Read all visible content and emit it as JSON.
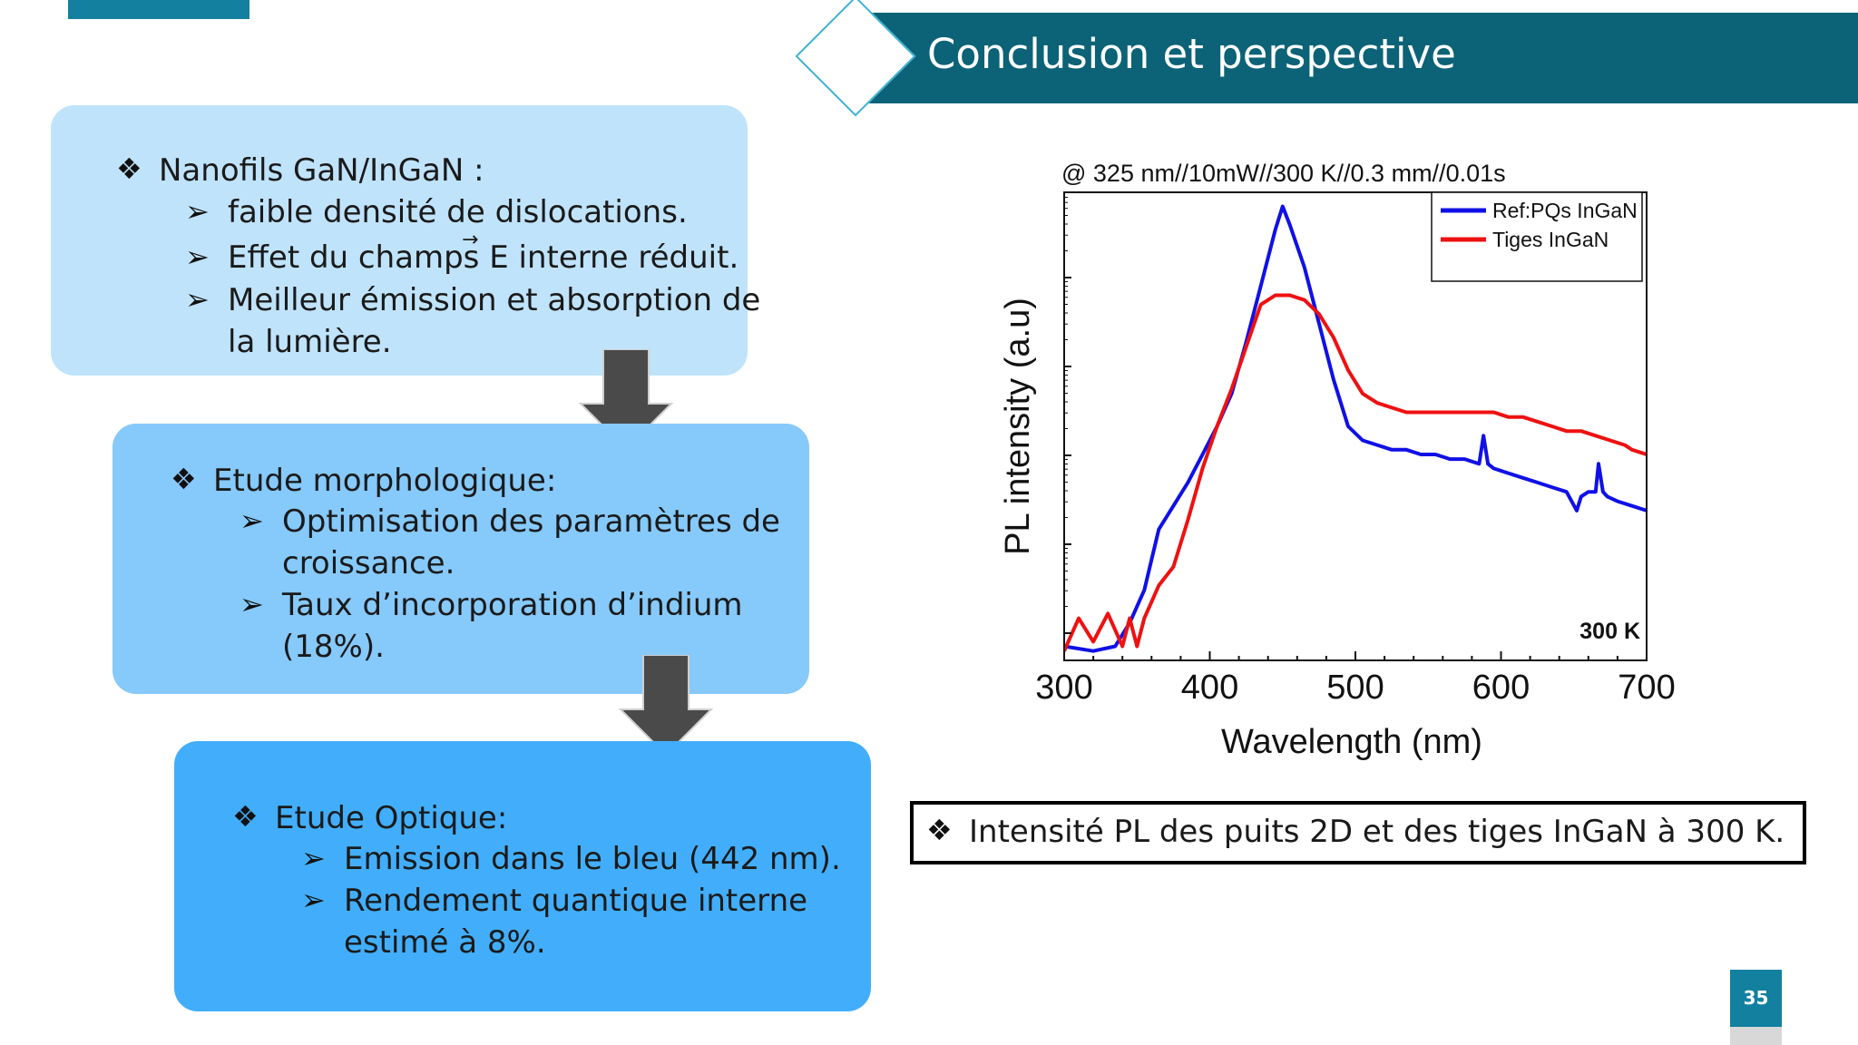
{
  "slide": {
    "title": "Conclusion et perspective",
    "page_number": "35",
    "colors": {
      "header": "#0c6277",
      "accent": "#13809f",
      "box1": "#bfe3fb",
      "box2": "#86c9fb",
      "box3": "#42aefb"
    }
  },
  "box1": {
    "heading": "Nanofils GaN/InGaN :",
    "items": [
      "faible densité de dislocations.",
      "Effet du champs E interne réduit.",
      "Meilleur émission et absorption de",
      "la lumière."
    ]
  },
  "box2": {
    "heading": "Etude morphologique:",
    "items": [
      "Optimisation des paramètres de",
      "croissance.",
      "Taux d’incorporation d’indium",
      "(18%)."
    ]
  },
  "box3": {
    "heading": "Etude Optique:",
    "items": [
      "Emission dans le bleu (442 nm).",
      "Rendement quantique interne",
      "estimé à 8%."
    ]
  },
  "caption": "Intensité PL des puits 2D et des tiges InGaN à 300 K.",
  "chart_data": {
    "type": "line",
    "title": "@ 325 nm//10mW//300 K//0.3 mm//0.01s",
    "xlabel": "Wavelength (nm)",
    "ylabel": "PL intensity (a.u)",
    "xlim": [
      300,
      700
    ],
    "xticks": [
      300,
      400,
      500,
      600,
      700
    ],
    "yscale": "log",
    "annotation": "300 K",
    "legend_position": "top-right",
    "grid": false,
    "series": [
      {
        "name": "Ref:PQs InGaN",
        "color": "#1010e6",
        "x": [
          300,
          320,
          335,
          345,
          355,
          365,
          375,
          385,
          395,
          405,
          415,
          425,
          435,
          445,
          450,
          455,
          465,
          475,
          485,
          495,
          505,
          515,
          525,
          535,
          545,
          555,
          565,
          575,
          585,
          588,
          591,
          595,
          605,
          615,
          625,
          635,
          645,
          652,
          655,
          660,
          665,
          667,
          670,
          673,
          680,
          690,
          700
        ],
        "y": [
          0.03,
          0.02,
          0.03,
          0.08,
          0.15,
          0.28,
          0.33,
          0.38,
          0.44,
          0.5,
          0.57,
          0.68,
          0.8,
          0.92,
          0.97,
          0.93,
          0.84,
          0.72,
          0.6,
          0.5,
          0.47,
          0.46,
          0.45,
          0.45,
          0.44,
          0.44,
          0.43,
          0.43,
          0.42,
          0.48,
          0.42,
          0.41,
          0.4,
          0.39,
          0.38,
          0.37,
          0.36,
          0.32,
          0.35,
          0.36,
          0.36,
          0.42,
          0.36,
          0.35,
          0.34,
          0.33,
          0.32
        ]
      },
      {
        "name": "Tiges InGaN",
        "color": "#ee1111",
        "x": [
          300,
          310,
          320,
          330,
          340,
          345,
          350,
          355,
          365,
          375,
          385,
          395,
          405,
          415,
          425,
          435,
          445,
          455,
          465,
          475,
          485,
          495,
          505,
          515,
          525,
          535,
          545,
          555,
          565,
          575,
          585,
          595,
          605,
          615,
          625,
          635,
          645,
          655,
          665,
          675,
          685,
          690,
          700
        ],
        "y": [
          0.02,
          0.09,
          0.04,
          0.1,
          0.03,
          0.09,
          0.03,
          0.09,
          0.16,
          0.2,
          0.3,
          0.41,
          0.5,
          0.58,
          0.67,
          0.76,
          0.78,
          0.78,
          0.77,
          0.74,
          0.69,
          0.62,
          0.57,
          0.55,
          0.54,
          0.53,
          0.53,
          0.53,
          0.53,
          0.53,
          0.53,
          0.53,
          0.52,
          0.52,
          0.51,
          0.5,
          0.49,
          0.49,
          0.48,
          0.47,
          0.46,
          0.45,
          0.44
        ]
      }
    ]
  }
}
